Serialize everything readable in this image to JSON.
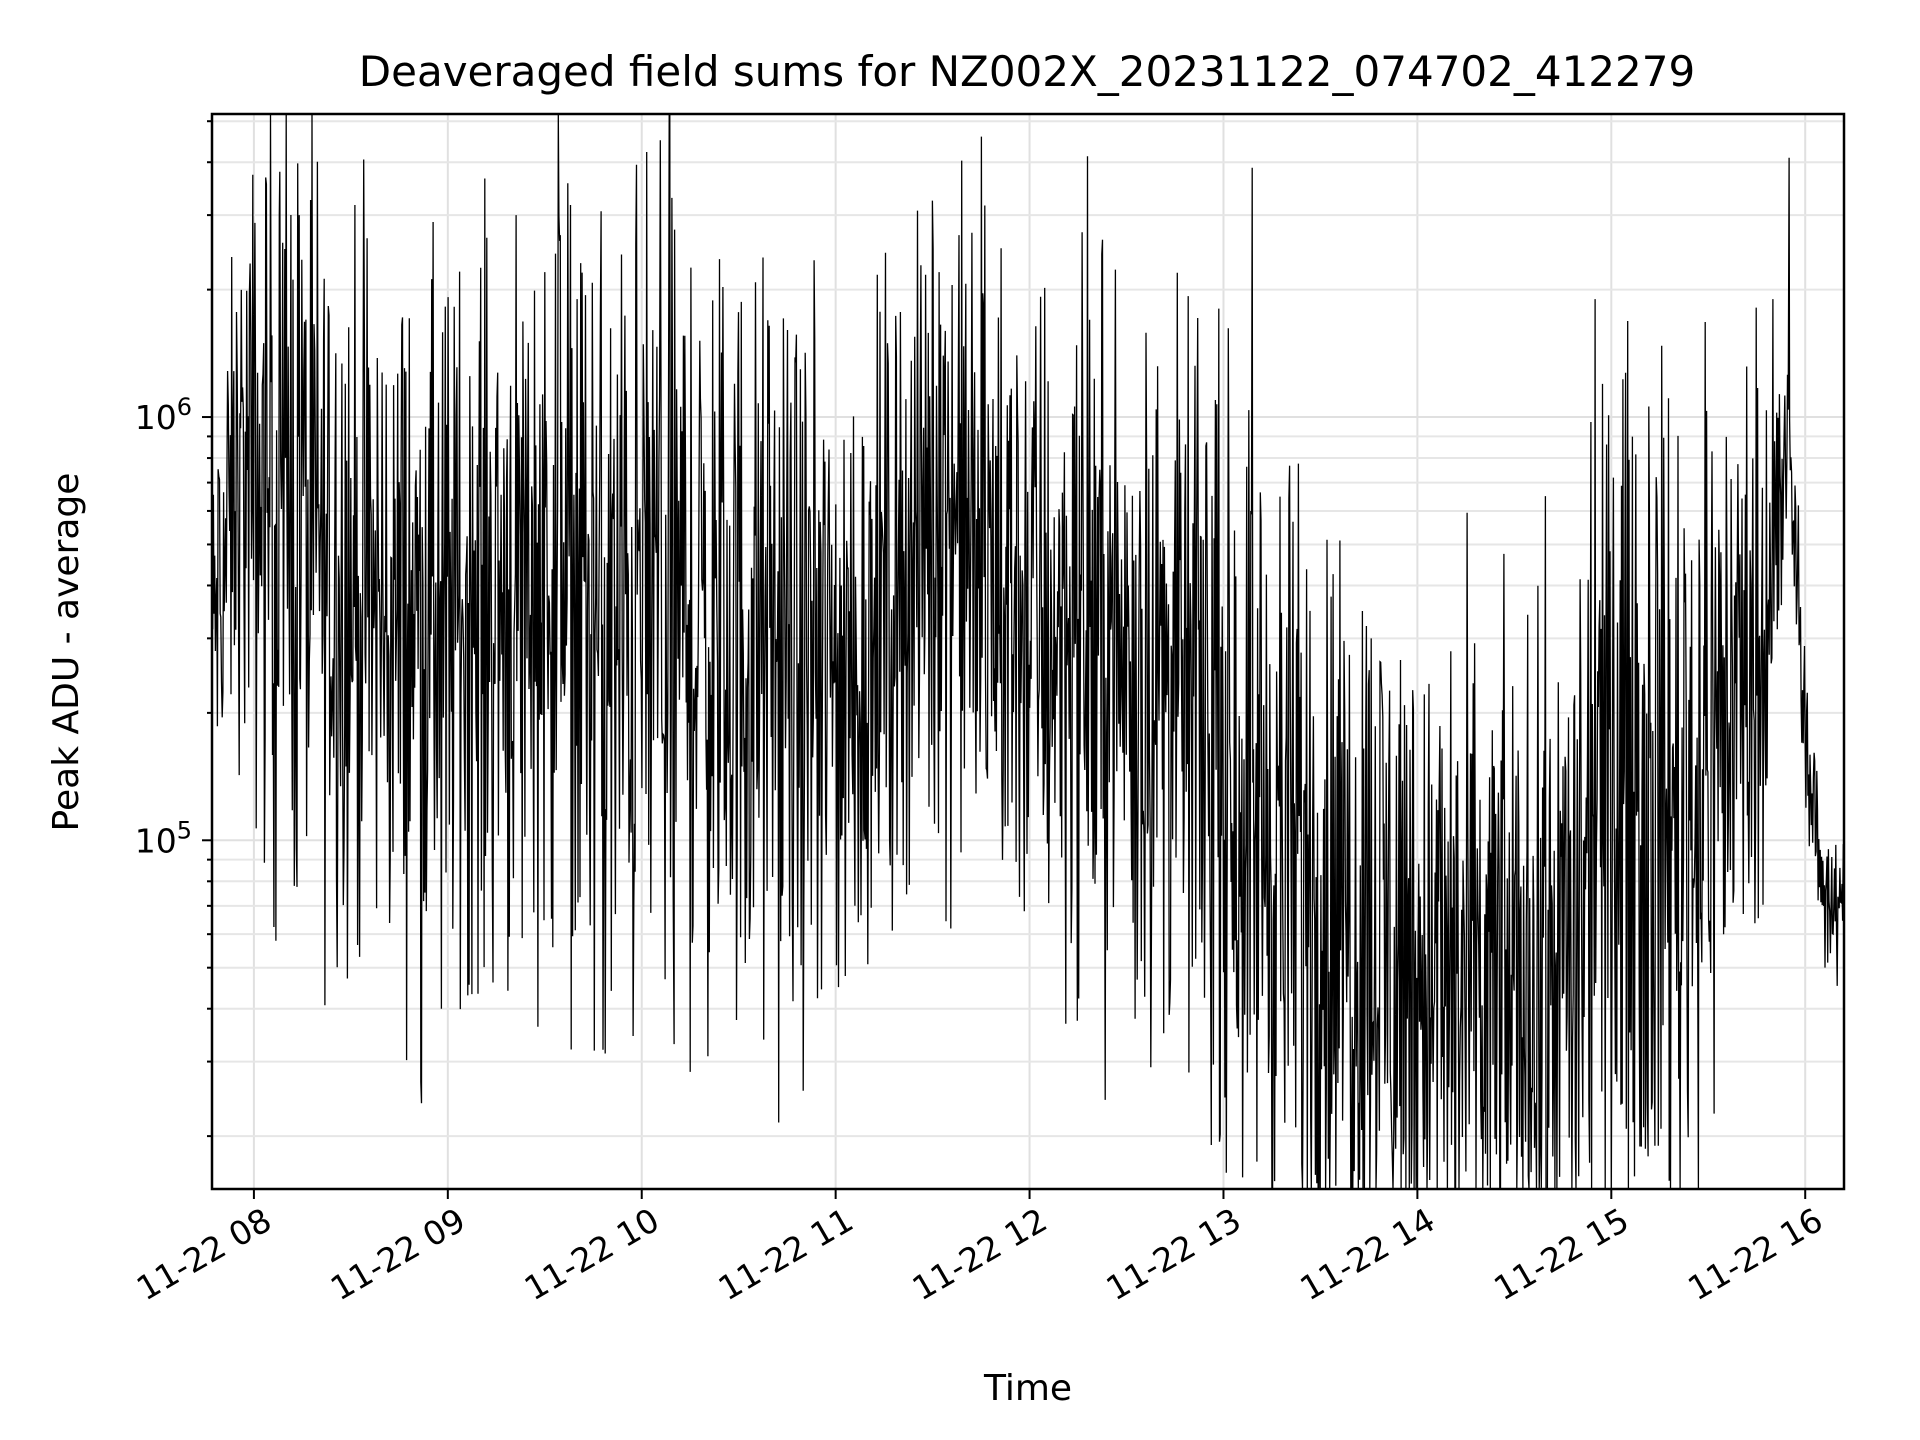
{
  "chart_data": {
    "type": "line",
    "title": "Deaveraged field sums for NZ002X_20231122_074702_412279",
    "xlabel": "Time",
    "ylabel": "Peak ADU - average",
    "xscale": "time",
    "yscale": "log",
    "xlim": [
      "2023-11-22T07:47:02",
      "2023-11-22T16:12:00"
    ],
    "ylim": [
      15000,
      5200000
    ],
    "grid": true,
    "x_ticks": [
      "11-22 08",
      "11-22 09",
      "11-22 10",
      "11-22 11",
      "11-22 12",
      "11-22 13",
      "11-22 14",
      "11-22 15",
      "11-22 16"
    ],
    "x_tick_times": [
      "2023-11-22T08:00:00",
      "2023-11-22T09:00:00",
      "2023-11-22T10:00:00",
      "2023-11-22T11:00:00",
      "2023-11-22T12:00:00",
      "2023-11-22T13:00:00",
      "2023-11-22T14:00:00",
      "2023-11-22T15:00:00",
      "2023-11-22T16:00:00"
    ],
    "y_ticks": [
      {
        "base": "10",
        "exp": "5",
        "value": 100000
      },
      {
        "base": "10",
        "exp": "6",
        "value": 1000000
      }
    ],
    "series": [
      {
        "color": "#000000",
        "x": [
          "2023-11-22T07:47:00",
          "2023-11-22T07:55:00",
          "2023-11-22T08:05:00",
          "2023-11-22T08:20:00",
          "2023-11-22T08:40:00",
          "2023-11-22T09:00:00",
          "2023-11-22T09:20:00",
          "2023-11-22T09:35:00",
          "2023-11-22T09:50:00",
          "2023-11-22T10:05:00",
          "2023-11-22T10:20:00",
          "2023-11-22T10:35:00",
          "2023-11-22T10:50:00",
          "2023-11-22T11:05:00",
          "2023-11-22T11:20:00",
          "2023-11-22T11:35:00",
          "2023-11-22T11:50:00",
          "2023-11-22T12:05:00",
          "2023-11-22T12:20:00",
          "2023-11-22T12:35:00",
          "2023-11-22T12:50:00",
          "2023-11-22T13:05:00",
          "2023-11-22T13:20:00",
          "2023-11-22T13:35:00",
          "2023-11-22T13:50:00",
          "2023-11-22T14:05:00",
          "2023-11-22T14:20:00",
          "2023-11-22T14:35:00",
          "2023-11-22T14:50:00",
          "2023-11-22T15:05:00",
          "2023-11-22T15:20:00",
          "2023-11-22T15:35:00",
          "2023-11-22T15:50:00",
          "2023-11-22T15:55:00",
          "2023-11-22T16:00:00",
          "2023-11-22T16:05:00",
          "2023-11-22T16:12:00"
        ],
        "values": [
          300000,
          700000,
          650000,
          500000,
          330000,
          330000,
          400000,
          480000,
          260000,
          400000,
          290000,
          280000,
          230000,
          240000,
          420000,
          650000,
          380000,
          330000,
          300000,
          250000,
          230000,
          140000,
          90000,
          70000,
          60000,
          48000,
          42000,
          45000,
          55000,
          170000,
          110000,
          200000,
          400000,
          900000,
          180000,
          80000,
          65000
        ],
        "noise_amp": [
          0.2,
          0.3,
          0.45,
          0.45,
          0.4,
          0.4,
          0.45,
          0.45,
          0.5,
          0.5,
          0.45,
          0.45,
          0.4,
          0.4,
          0.35,
          0.4,
          0.4,
          0.4,
          0.4,
          0.4,
          0.4,
          0.45,
          0.45,
          0.45,
          0.45,
          0.4,
          0.4,
          0.4,
          0.45,
          0.5,
          0.5,
          0.4,
          0.3,
          0.12,
          0.08,
          0.1,
          0.1
        ],
        "spikes": [
          {
            "x": "2023-11-22T08:08:00",
            "y": 3800000
          },
          {
            "x": "2023-11-22T08:14:00",
            "y": 3000000
          },
          {
            "x": "2023-11-22T09:30:00",
            "y": 2200000
          },
          {
            "x": "2023-11-22T09:40:00",
            "y": 1900000
          },
          {
            "x": "2023-11-22T11:32:00",
            "y": 2200000
          },
          {
            "x": "2023-11-22T14:55:00",
            "y": 1900000
          },
          {
            "x": "2023-11-22T15:55:00",
            "y": 4100000
          },
          {
            "x": "2023-11-22T15:50:00",
            "y": 1900000
          }
        ],
        "dips": [
          {
            "x": "2023-11-22T08:58:00",
            "y": 40000
          },
          {
            "x": "2023-11-22T09:48:00",
            "y": 32000
          },
          {
            "x": "2023-11-22T10:10:00",
            "y": 33000
          },
          {
            "x": "2023-11-22T13:27:00",
            "y": 22000
          },
          {
            "x": "2023-11-22T14:15:00",
            "y": 16500
          },
          {
            "x": "2023-11-22T14:28:00",
            "y": 17500
          },
          {
            "x": "2023-11-22T15:10:00",
            "y": 21000
          }
        ]
      }
    ]
  }
}
